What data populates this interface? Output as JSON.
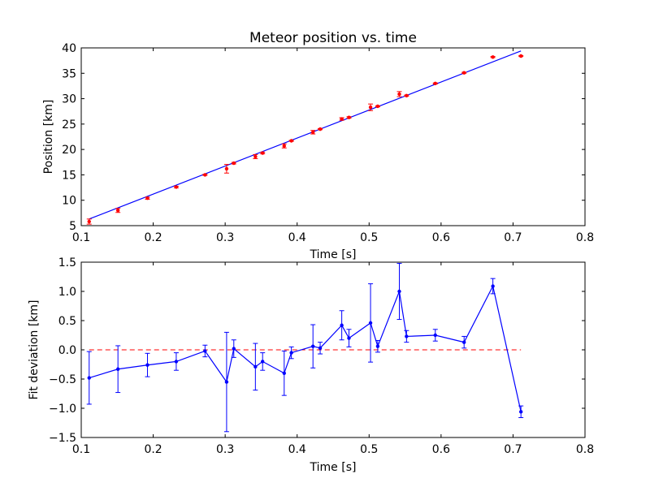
{
  "chart_data": [
    {
      "type": "scatter",
      "title": "Meteor position vs. time",
      "xlabel": "Time [s]",
      "ylabel": "Position [km]",
      "xlim": [
        0.1,
        0.8
      ],
      "ylim": [
        5,
        40
      ],
      "xticks": [
        "0.1",
        "0.2",
        "0.3",
        "0.4",
        "0.5",
        "0.6",
        "0.7",
        "0.8"
      ],
      "yticks": [
        "5",
        "10",
        "15",
        "20",
        "25",
        "30",
        "35",
        "40"
      ],
      "marker_color": "#ff0000",
      "fit_color": "#0000ff",
      "fit_line": {
        "x": [
          0.111,
          0.711
        ],
        "y": [
          6.3,
          39.4
        ]
      },
      "points": [
        {
          "x": 0.111,
          "y": 5.8,
          "err": 0.5
        },
        {
          "x": 0.151,
          "y": 8.0,
          "err": 0.4
        },
        {
          "x": 0.192,
          "y": 10.4,
          "err": 0.2
        },
        {
          "x": 0.232,
          "y": 12.6,
          "err": 0.15
        },
        {
          "x": 0.272,
          "y": 15.0,
          "err": 0.1
        },
        {
          "x": 0.302,
          "y": 16.2,
          "err": 0.85
        },
        {
          "x": 0.312,
          "y": 17.3,
          "err": 0.15
        },
        {
          "x": 0.342,
          "y": 18.6,
          "err": 0.4
        },
        {
          "x": 0.352,
          "y": 19.3,
          "err": 0.15
        },
        {
          "x": 0.382,
          "y": 20.7,
          "err": 0.4
        },
        {
          "x": 0.392,
          "y": 21.7,
          "err": 0.1
        },
        {
          "x": 0.422,
          "y": 23.4,
          "err": 0.35
        },
        {
          "x": 0.432,
          "y": 24.0,
          "err": 0.1
        },
        {
          "x": 0.462,
          "y": 26.0,
          "err": 0.25
        },
        {
          "x": 0.472,
          "y": 26.3,
          "err": 0.15
        },
        {
          "x": 0.502,
          "y": 28.3,
          "err": 0.65
        },
        {
          "x": 0.512,
          "y": 28.5,
          "err": 0.1
        },
        {
          "x": 0.542,
          "y": 30.9,
          "err": 0.5
        },
        {
          "x": 0.552,
          "y": 30.6,
          "err": 0.1
        },
        {
          "x": 0.592,
          "y": 33.0,
          "err": 0.1
        },
        {
          "x": 0.632,
          "y": 35.1,
          "err": 0.1
        },
        {
          "x": 0.672,
          "y": 38.2,
          "err": 0.1
        },
        {
          "x": 0.711,
          "y": 38.4,
          "err": 0.1
        }
      ]
    },
    {
      "type": "line",
      "title": "",
      "xlabel": "Time [s]",
      "ylabel": "Fit deviation [km]",
      "xlim": [
        0.1,
        0.8
      ],
      "ylim": [
        -1.5,
        1.5
      ],
      "xticks": [
        "0.1",
        "0.2",
        "0.3",
        "0.4",
        "0.5",
        "0.6",
        "0.7",
        "0.8"
      ],
      "yticks": [
        "−1.5",
        "−1.0",
        "−0.5",
        "0.0",
        "0.5",
        "1.0",
        "1.5"
      ],
      "line_color": "#0000ff",
      "zero_line_color": "#ff0000",
      "zero_line": {
        "x": [
          0.111,
          0.711
        ],
        "y": 0.0
      },
      "points": [
        {
          "x": 0.111,
          "y": -0.48,
          "err": 0.45
        },
        {
          "x": 0.151,
          "y": -0.33,
          "err": 0.4
        },
        {
          "x": 0.192,
          "y": -0.26,
          "err": 0.2
        },
        {
          "x": 0.232,
          "y": -0.2,
          "err": 0.15
        },
        {
          "x": 0.272,
          "y": -0.02,
          "err": 0.1
        },
        {
          "x": 0.302,
          "y": -0.55,
          "err": 0.85
        },
        {
          "x": 0.312,
          "y": 0.02,
          "err": 0.15
        },
        {
          "x": 0.342,
          "y": -0.29,
          "err": 0.4
        },
        {
          "x": 0.352,
          "y": -0.2,
          "err": 0.15
        },
        {
          "x": 0.382,
          "y": -0.4,
          "err": 0.38
        },
        {
          "x": 0.392,
          "y": -0.05,
          "err": 0.1
        },
        {
          "x": 0.422,
          "y": 0.06,
          "err": 0.37
        },
        {
          "x": 0.432,
          "y": 0.03,
          "err": 0.1
        },
        {
          "x": 0.462,
          "y": 0.42,
          "err": 0.25
        },
        {
          "x": 0.472,
          "y": 0.2,
          "err": 0.15
        },
        {
          "x": 0.502,
          "y": 0.46,
          "err": 0.67
        },
        {
          "x": 0.512,
          "y": 0.06,
          "err": 0.1
        },
        {
          "x": 0.542,
          "y": 1.0,
          "err": 0.48
        },
        {
          "x": 0.552,
          "y": 0.23,
          "err": 0.1
        },
        {
          "x": 0.592,
          "y": 0.25,
          "err": 0.1
        },
        {
          "x": 0.632,
          "y": 0.13,
          "err": 0.1
        },
        {
          "x": 0.672,
          "y": 1.09,
          "err": 0.13
        },
        {
          "x": 0.711,
          "y": -1.06,
          "err": 0.1
        }
      ]
    }
  ]
}
